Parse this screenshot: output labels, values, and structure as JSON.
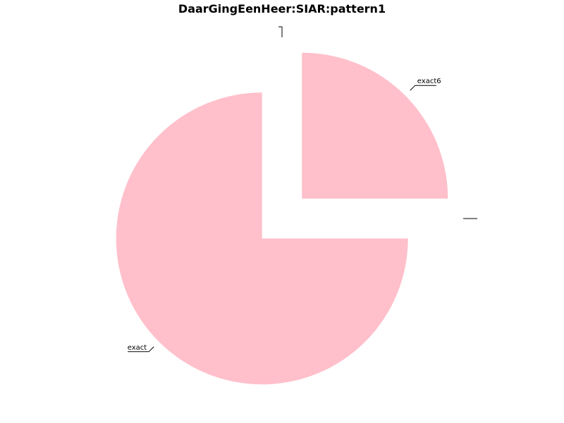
{
  "chart_data": {
    "type": "pie",
    "title": "DaarGingEenHeer:SIAR:pattern1",
    "slice_color": "#ffc0cb",
    "slices": [
      {
        "label": "",
        "value": 0
      },
      {
        "label": "exact6",
        "value": 25
      },
      {
        "label": "",
        "value": 0
      },
      {
        "label": "exact",
        "value": 75
      }
    ],
    "legend": "none"
  }
}
